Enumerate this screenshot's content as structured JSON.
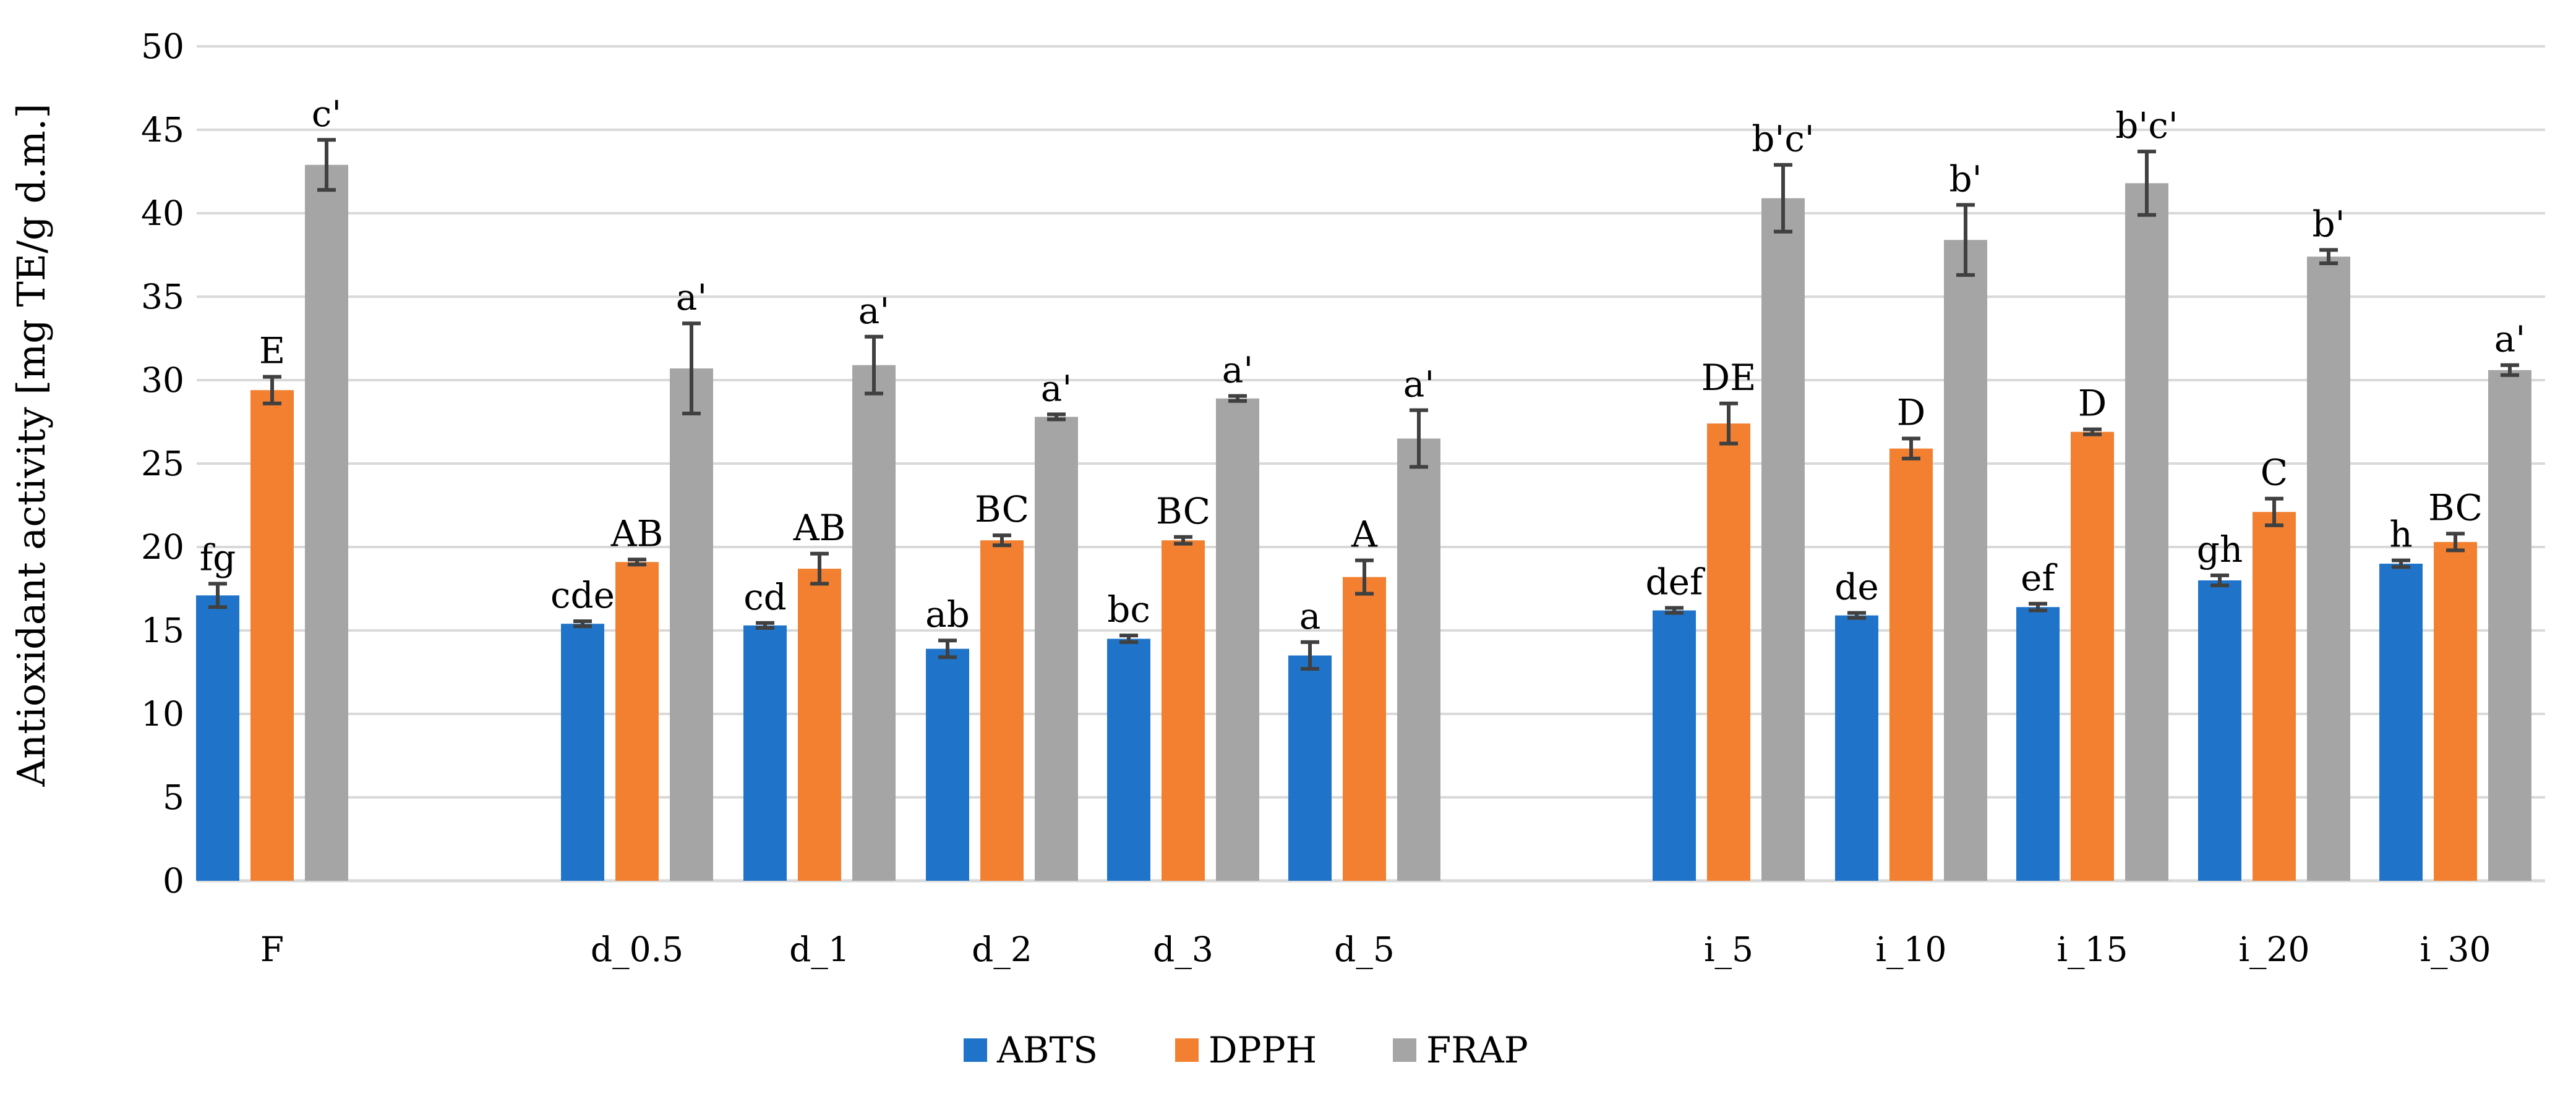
{
  "chart_data": {
    "type": "bar",
    "title": "",
    "xlabel": "",
    "ylabel": "Antioxidant activity [mg TE/g d.m.]",
    "ylim": [
      0,
      50
    ],
    "yticks": [
      0,
      5,
      10,
      15,
      20,
      25,
      30,
      35,
      40,
      45,
      50
    ],
    "grid": true,
    "legend_position": "bottom",
    "categories": [
      "F",
      "d_0.5",
      "d_1",
      "d_2",
      "d_3",
      "d_5",
      "i_5",
      "i_10",
      "i_15",
      "i_20",
      "i_30"
    ],
    "series": [
      {
        "name": "ABTS",
        "color": "#1f74c9",
        "values": [
          17.1,
          15.4,
          15.3,
          13.9,
          14.5,
          13.5,
          16.2,
          15.9,
          16.4,
          18.0,
          19.0
        ],
        "errors": [
          0.7,
          0.15,
          0.15,
          0.5,
          0.2,
          0.8,
          0.15,
          0.15,
          0.2,
          0.3,
          0.2
        ],
        "labels": [
          "fg",
          "cde",
          "cd",
          "ab",
          "bc",
          "a",
          "def",
          "de",
          "ef",
          "gh",
          "h"
        ]
      },
      {
        "name": "DPPH",
        "color": "#f28030",
        "values": [
          29.4,
          19.1,
          18.7,
          20.4,
          20.4,
          18.2,
          27.4,
          25.9,
          26.9,
          22.1,
          20.3
        ],
        "errors": [
          0.8,
          0.15,
          0.9,
          0.3,
          0.2,
          1.0,
          1.2,
          0.6,
          0.15,
          0.8,
          0.5
        ],
        "labels": [
          "E",
          "AB",
          "AB",
          "BC",
          "BC",
          "A",
          "DE",
          "D",
          "D",
          "C",
          "BC"
        ]
      },
      {
        "name": "FRAP",
        "color": "#a5a5a5",
        "values": [
          42.9,
          30.7,
          30.9,
          27.8,
          28.9,
          26.5,
          40.9,
          38.4,
          41.8,
          37.4,
          30.6
        ],
        "errors": [
          1.5,
          2.7,
          1.7,
          0.15,
          0.15,
          1.7,
          2.0,
          2.1,
          1.9,
          0.4,
          0.3
        ],
        "labels": [
          "c'",
          "a'",
          "a'",
          "a'",
          "a'",
          "a'",
          "b'c'",
          "b'",
          "b'c'",
          "b'",
          "a'"
        ]
      }
    ]
  }
}
